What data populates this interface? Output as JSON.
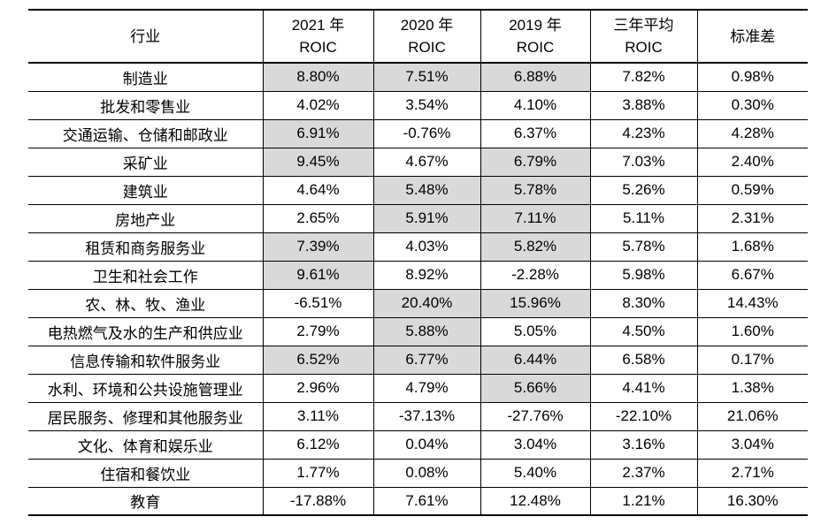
{
  "colors": {
    "cell_highlight": "#d9d9d9",
    "border": "#000000",
    "text": "#000000",
    "background": "#ffffff"
  },
  "table": {
    "header": {
      "industry": "行业",
      "col_2021_line1": "2021 年",
      "col_2021_line2": "ROIC",
      "col_2020_line1": "2020 年",
      "col_2020_line2": "ROIC",
      "col_2019_line1": "2019 年",
      "col_2019_line2": "ROIC",
      "col_avg_line1": "三年平均",
      "col_avg_line2": "ROIC",
      "col_std": "标准差"
    },
    "rows": [
      {
        "industry": "制造业",
        "roic_2021": "8.80%",
        "roic_2020": "7.51%",
        "roic_2019": "6.88%",
        "avg": "7.82%",
        "std": "0.98%",
        "shaded": [
          true,
          true,
          true,
          false,
          false
        ]
      },
      {
        "industry": "批发和零售业",
        "roic_2021": "4.02%",
        "roic_2020": "3.54%",
        "roic_2019": "4.10%",
        "avg": "3.88%",
        "std": "0.30%",
        "shaded": [
          false,
          false,
          false,
          false,
          false
        ]
      },
      {
        "industry": "交通运输、仓储和邮政业",
        "roic_2021": "6.91%",
        "roic_2020": "-0.76%",
        "roic_2019": "6.37%",
        "avg": "4.23%",
        "std": "4.28%",
        "shaded": [
          true,
          false,
          false,
          false,
          false
        ]
      },
      {
        "industry": "采矿业",
        "roic_2021": "9.45%",
        "roic_2020": "4.67%",
        "roic_2019": "6.79%",
        "avg": "7.03%",
        "std": "2.40%",
        "shaded": [
          true,
          false,
          true,
          false,
          false
        ]
      },
      {
        "industry": "建筑业",
        "roic_2021": "4.64%",
        "roic_2020": "5.48%",
        "roic_2019": "5.78%",
        "avg": "5.26%",
        "std": "0.59%",
        "shaded": [
          false,
          true,
          true,
          false,
          false
        ]
      },
      {
        "industry": "房地产业",
        "roic_2021": "2.65%",
        "roic_2020": "5.91%",
        "roic_2019": "7.11%",
        "avg": "5.11%",
        "std": "2.31%",
        "shaded": [
          false,
          true,
          true,
          false,
          false
        ]
      },
      {
        "industry": "租赁和商务服务业",
        "roic_2021": "7.39%",
        "roic_2020": "4.03%",
        "roic_2019": "5.82%",
        "avg": "5.78%",
        "std": "1.68%",
        "shaded": [
          true,
          false,
          true,
          false,
          false
        ]
      },
      {
        "industry": "卫生和社会工作",
        "roic_2021": "9.61%",
        "roic_2020": "8.92%",
        "roic_2019": "-2.28%",
        "avg": "5.98%",
        "std": "6.67%",
        "shaded": [
          true,
          false,
          false,
          false,
          false
        ]
      },
      {
        "industry": "农、林、牧、渔业",
        "roic_2021": "-6.51%",
        "roic_2020": "20.40%",
        "roic_2019": "15.96%",
        "avg": "8.30%",
        "std": "14.43%",
        "shaded": [
          false,
          true,
          true,
          false,
          false
        ]
      },
      {
        "industry": "电热燃气及水的生产和供应业",
        "roic_2021": "2.79%",
        "roic_2020": "5.88%",
        "roic_2019": "5.05%",
        "avg": "4.50%",
        "std": "1.60%",
        "shaded": [
          false,
          true,
          false,
          false,
          false
        ]
      },
      {
        "industry": "信息传输和软件服务业",
        "roic_2021": "6.52%",
        "roic_2020": "6.77%",
        "roic_2019": "6.44%",
        "avg": "6.58%",
        "std": "0.17%",
        "shaded": [
          true,
          true,
          true,
          false,
          false
        ]
      },
      {
        "industry": "水利、环境和公共设施管理业",
        "roic_2021": "2.96%",
        "roic_2020": "4.79%",
        "roic_2019": "5.66%",
        "avg": "4.41%",
        "std": "1.38%",
        "shaded": [
          false,
          false,
          true,
          false,
          false
        ]
      },
      {
        "industry": "居民服务、修理和其他服务业",
        "roic_2021": "3.11%",
        "roic_2020": "-37.13%",
        "roic_2019": "-27.76%",
        "avg": "-22.10%",
        "std": "21.06%",
        "shaded": [
          false,
          false,
          false,
          false,
          false
        ]
      },
      {
        "industry": "文化、体育和娱乐业",
        "roic_2021": "6.12%",
        "roic_2020": "0.04%",
        "roic_2019": "3.04%",
        "avg": "3.16%",
        "std": "3.04%",
        "shaded": [
          false,
          false,
          false,
          false,
          false
        ]
      },
      {
        "industry": "住宿和餐饮业",
        "roic_2021": "1.77%",
        "roic_2020": "0.08%",
        "roic_2019": "5.40%",
        "avg": "2.37%",
        "std": "2.71%",
        "shaded": [
          false,
          false,
          false,
          false,
          false
        ]
      },
      {
        "industry": "教育",
        "roic_2021": "-17.88%",
        "roic_2020": "7.61%",
        "roic_2019": "12.48%",
        "avg": "1.21%",
        "std": "16.30%",
        "shaded": [
          false,
          false,
          false,
          false,
          false
        ]
      }
    ]
  }
}
